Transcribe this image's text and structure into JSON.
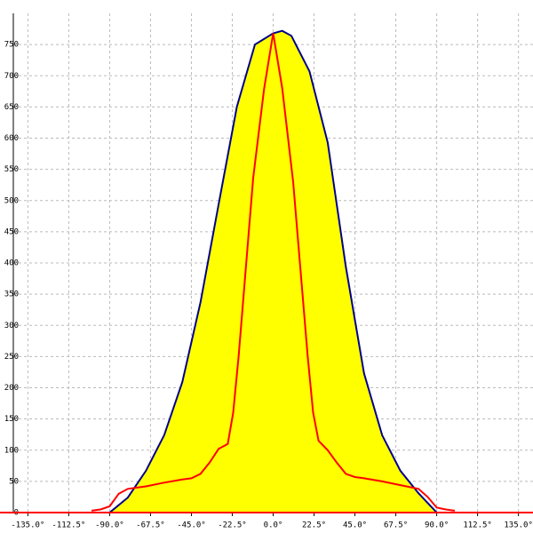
{
  "chart_data": {
    "type": "line",
    "xlim": [
      -143,
      143
    ],
    "ylim": [
      0,
      800
    ],
    "xticks": [
      {
        "value": -135,
        "label": "-135.0°"
      },
      {
        "value": -112.5,
        "label": "-112.5°"
      },
      {
        "value": -90,
        "label": "-90.0°"
      },
      {
        "value": -67.5,
        "label": "-67.5°"
      },
      {
        "value": -45,
        "label": "-45.0°"
      },
      {
        "value": -22.5,
        "label": "-22.5°"
      },
      {
        "value": 0,
        "label": "0.0°"
      },
      {
        "value": 22.5,
        "label": "22.5°"
      },
      {
        "value": 45,
        "label": "45.0°"
      },
      {
        "value": 67.5,
        "label": "67.5°"
      },
      {
        "value": 90,
        "label": "90.0°"
      },
      {
        "value": 112.5,
        "label": "112.5°"
      },
      {
        "value": 135,
        "label": "135.0°"
      }
    ],
    "yticks": [
      0,
      50,
      100,
      150,
      200,
      250,
      300,
      350,
      400,
      450,
      500,
      550,
      600,
      650,
      700,
      750
    ],
    "grid": true,
    "series": [
      {
        "color": "#00008b",
        "fill": "#ffff00",
        "x": [
          -90,
          -80,
          -70,
          -60,
          -50,
          -40,
          -30,
          -20,
          -10,
          0,
          5,
          10,
          20,
          30,
          40,
          50,
          60,
          70,
          80,
          90
        ],
        "values": [
          0,
          24,
          67,
          124,
          209,
          337,
          494,
          650,
          750,
          768,
          772,
          764,
          707,
          593,
          394,
          223,
          124,
          67,
          31,
          0
        ]
      },
      {
        "color": "#ff0000",
        "x": [
          -100,
          -95,
          -90,
          -85,
          -80,
          -70,
          -60,
          -50,
          -45,
          -40,
          -35,
          -30,
          -25,
          -22,
          -19,
          -11,
          -5,
          0,
          5,
          11,
          19,
          22,
          25,
          30,
          35,
          40,
          45,
          50,
          60,
          70,
          80,
          85,
          90,
          95,
          100
        ],
        "values": [
          3,
          5,
          10,
          30,
          38,
          42,
          48,
          53,
          55,
          62,
          80,
          102,
          110,
          160,
          250,
          536,
          679,
          768,
          680,
          530,
          250,
          160,
          115,
          100,
          80,
          62,
          57,
          55,
          50,
          44,
          38,
          25,
          8,
          5,
          3
        ]
      }
    ]
  }
}
